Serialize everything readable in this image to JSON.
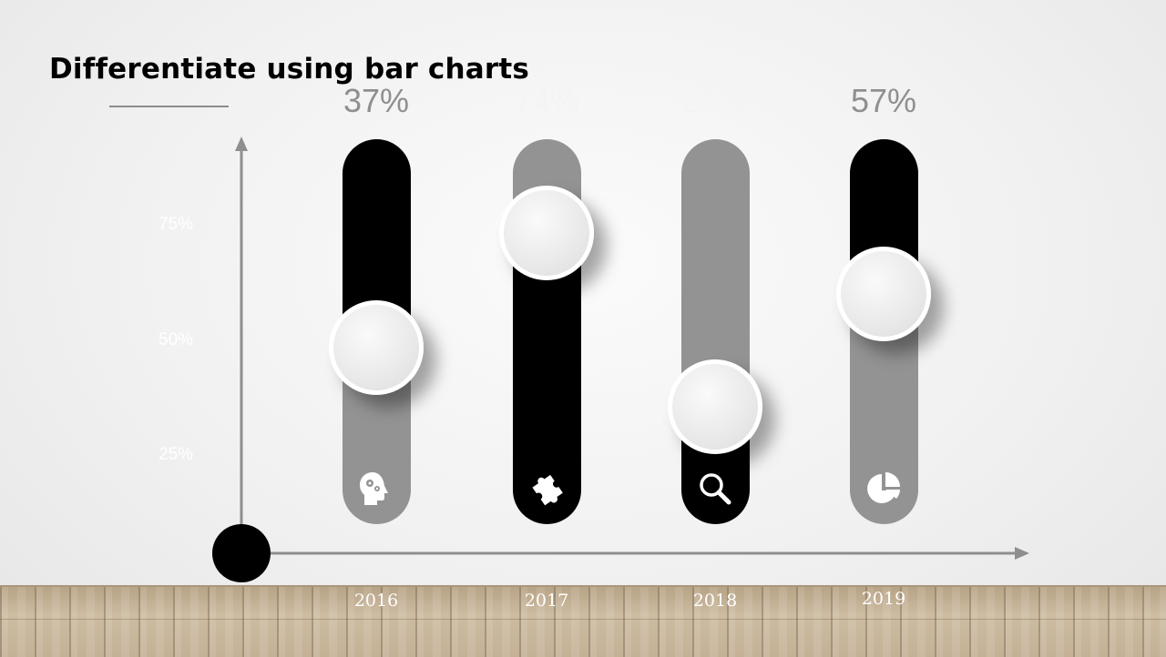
{
  "slide": {
    "title": "Differentiate using bar charts"
  },
  "chart_data": {
    "type": "bar",
    "categories": [
      "2016",
      "2017",
      "2018",
      "2019"
    ],
    "values": [
      37,
      74,
      25,
      57
    ],
    "value_labels": [
      "37%",
      "74%",
      "25%",
      "57%"
    ],
    "y_ticks": [
      "25%",
      "50%",
      "75%"
    ],
    "ylim": [
      0,
      100
    ],
    "grid": false,
    "colors": {
      "black": "#000000",
      "gray": "#939393",
      "value_label_gray": "#8f8f8f",
      "value_label_light": "#f4f4f4"
    },
    "bars": [
      {
        "year": "2016",
        "top_color": "#000000",
        "bottom_color": "#939393",
        "icon": "head-gears-icon",
        "label_color": "#8f8f8f"
      },
      {
        "year": "2017",
        "top_color": "#939393",
        "bottom_color": "#000000",
        "icon": "puzzle-icon",
        "label_color": "#f4f4f4"
      },
      {
        "year": "2018",
        "top_color": "#939393",
        "bottom_color": "#000000",
        "icon": "magnifier-icon",
        "label_color": "#f4f4f4"
      },
      {
        "year": "2019",
        "top_color": "#000000",
        "bottom_color": "#939393",
        "icon": "pie-chart-icon",
        "label_color": "#8f8f8f"
      }
    ]
  }
}
